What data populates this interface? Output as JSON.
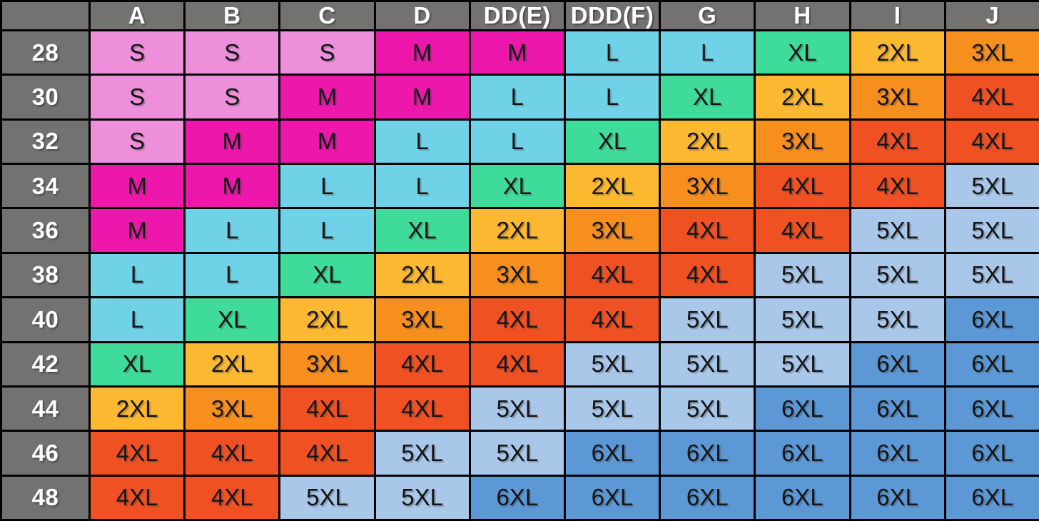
{
  "colors": {
    "header_bg": "#747171",
    "header_text": "#FFFFFF",
    "cell_text": "#141414",
    "grid_line": "#000000",
    "size_colors": {
      "S": "#EE8FDC",
      "M": "#ED17AB",
      "L": "#70D2E7",
      "XL": "#3EDB9B",
      "2XL": "#FCB831",
      "3XL": "#F78F1E",
      "4XL": "#F05123",
      "5XL": "#A9C7E9",
      "6XL": "#5B98D5"
    }
  },
  "chart_data": {
    "type": "table",
    "corner_label": "",
    "column_headers": [
      "A",
      "B",
      "C",
      "D",
      "DD(E)",
      "DDD(F)",
      "G",
      "H",
      "I",
      "J"
    ],
    "row_headers": [
      "28",
      "30",
      "32",
      "34",
      "36",
      "38",
      "40",
      "42",
      "44",
      "46",
      "48"
    ],
    "cells": [
      [
        "S",
        "S",
        "S",
        "M",
        "M",
        "L",
        "L",
        "XL",
        "2XL",
        "3XL"
      ],
      [
        "S",
        "S",
        "M",
        "M",
        "L",
        "L",
        "XL",
        "2XL",
        "3XL",
        "4XL"
      ],
      [
        "S",
        "M",
        "M",
        "L",
        "L",
        "XL",
        "2XL",
        "3XL",
        "4XL",
        "4XL"
      ],
      [
        "M",
        "M",
        "L",
        "L",
        "XL",
        "2XL",
        "3XL",
        "4XL",
        "4XL",
        "5XL"
      ],
      [
        "M",
        "L",
        "L",
        "XL",
        "2XL",
        "3XL",
        "4XL",
        "4XL",
        "5XL",
        "5XL"
      ],
      [
        "L",
        "L",
        "XL",
        "2XL",
        "3XL",
        "4XL",
        "4XL",
        "5XL",
        "5XL",
        "5XL"
      ],
      [
        "L",
        "XL",
        "2XL",
        "3XL",
        "4XL",
        "4XL",
        "5XL",
        "5XL",
        "5XL",
        "6XL"
      ],
      [
        "XL",
        "2XL",
        "3XL",
        "4XL",
        "4XL",
        "5XL",
        "5XL",
        "5XL",
        "6XL",
        "6XL"
      ],
      [
        "2XL",
        "3XL",
        "4XL",
        "4XL",
        "5XL",
        "5XL",
        "5XL",
        "6XL",
        "6XL",
        "6XL"
      ],
      [
        "4XL",
        "4XL",
        "4XL",
        "5XL",
        "5XL",
        "6XL",
        "6XL",
        "6XL",
        "6XL",
        "6XL"
      ],
      [
        "4XL",
        "4XL",
        "5XL",
        "5XL",
        "6XL",
        "6XL",
        "6XL",
        "6XL",
        "6XL",
        "6XL"
      ]
    ]
  }
}
